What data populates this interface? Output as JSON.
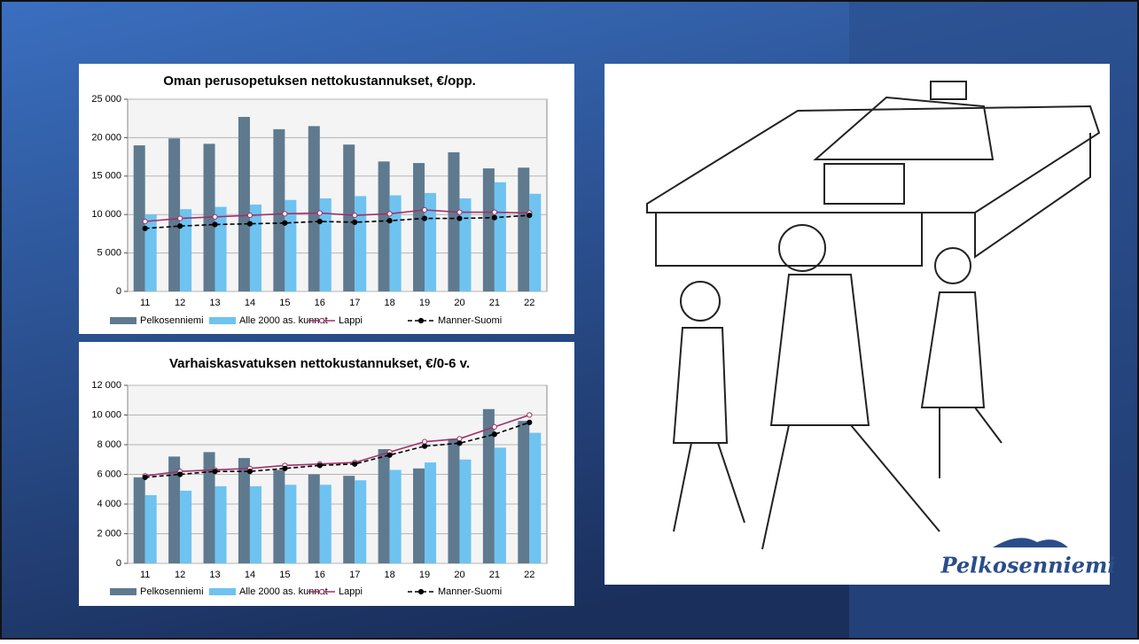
{
  "chart_data": [
    {
      "type": "combo",
      "title": "Oman perusopetuksen nettokustannukset, €/opp.",
      "categories": [
        "11",
        "12",
        "13",
        "14",
        "15",
        "16",
        "17",
        "18",
        "19",
        "20",
        "21",
        "22"
      ],
      "ylim": [
        0,
        25000
      ],
      "yticks": [
        0,
        {
          "value": 5000,
          "label": "5 000"
        },
        {
          "value": 10000,
          "label": "10 000"
        },
        {
          "value": 15000,
          "label": "15 000"
        },
        {
          "value": 20000,
          "label": "20 000"
        },
        {
          "value": 25000,
          "label": "25 000"
        }
      ],
      "grid": true,
      "series": [
        {
          "name": "Pelkosenniemi",
          "type": "bar",
          "color": "#5f7a8f",
          "values": [
            19000,
            19900,
            19200,
            22700,
            21100,
            21500,
            19100,
            16900,
            16700,
            18100,
            16000,
            16100
          ]
        },
        {
          "name": "Alle 2000 as. kunnat",
          "type": "bar",
          "color": "#6ec3f0",
          "values": [
            10000,
            10700,
            11000,
            11300,
            11900,
            12100,
            12400,
            12500,
            12800,
            12100,
            14200,
            12700
          ]
        },
        {
          "name": "Lappi",
          "type": "line",
          "color": "#a0306a",
          "marker": "open",
          "dashed": false,
          "values": [
            9100,
            9500,
            9700,
            9900,
            10100,
            10200,
            9900,
            10100,
            10600,
            10300,
            10300,
            10200
          ]
        },
        {
          "name": "Manner-Suomi",
          "type": "line",
          "color": "#000000",
          "marker": "filled",
          "dashed": true,
          "values": [
            8200,
            8500,
            8700,
            8800,
            8900,
            9100,
            9000,
            9200,
            9500,
            9500,
            9600,
            9900
          ]
        }
      ]
    },
    {
      "type": "combo",
      "title": "Varhaiskasvatuksen nettokustannukset, €/0-6 v.",
      "categories": [
        "11",
        "12",
        "13",
        "14",
        "15",
        "16",
        "17",
        "18",
        "19",
        "20",
        "21",
        "22"
      ],
      "ylim": [
        0,
        12000
      ],
      "yticks": [
        0,
        {
          "value": 2000,
          "label": "2 000"
        },
        {
          "value": 4000,
          "label": "4 000"
        },
        {
          "value": 6000,
          "label": "6 000"
        },
        {
          "value": 8000,
          "label": "8 000"
        },
        {
          "value": 10000,
          "label": "10 000"
        },
        {
          "value": 12000,
          "label": "12 000"
        }
      ],
      "grid": true,
      "series": [
        {
          "name": "Pelkosenniemi",
          "type": "bar",
          "color": "#5f7a8f",
          "values": [
            5800,
            7200,
            7500,
            7100,
            6300,
            6000,
            5900,
            7700,
            6400,
            8400,
            10400,
            9600
          ]
        },
        {
          "name": "Alle 2000 as. kunnat",
          "type": "bar",
          "color": "#6ec3f0",
          "values": [
            4600,
            4900,
            5200,
            5200,
            5300,
            5300,
            5600,
            6300,
            6800,
            7000,
            7800,
            8800
          ]
        },
        {
          "name": "Lappi",
          "type": "line",
          "color": "#a0306a",
          "marker": "open",
          "dashed": false,
          "values": [
            5900,
            6200,
            6300,
            6400,
            6600,
            6700,
            6800,
            7500,
            8200,
            8400,
            9200,
            10000
          ]
        },
        {
          "name": "Manner-Suomi",
          "type": "line",
          "color": "#000000",
          "marker": "filled",
          "dashed": true,
          "values": [
            5800,
            6000,
            6200,
            6200,
            6400,
            6600,
            6700,
            7300,
            7900,
            8100,
            8700,
            9500
          ]
        }
      ]
    }
  ],
  "logo": "Pelkosenniemi"
}
